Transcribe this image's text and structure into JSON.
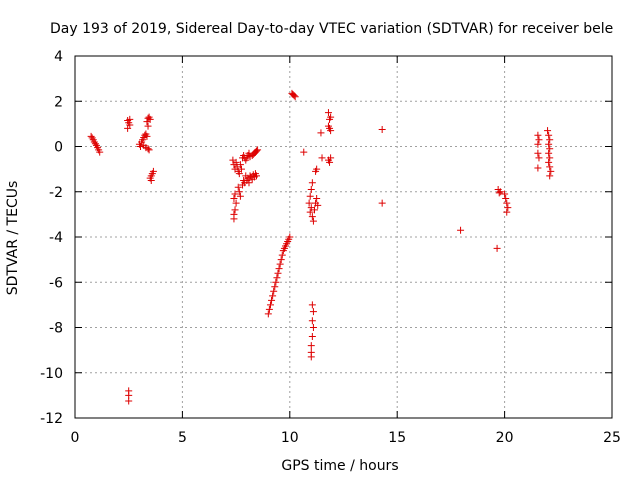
{
  "chart_data": {
    "type": "scatter",
    "title": "Day 193 of 2019, Sidereal Day-to-day VTEC variation (SDTVAR) for receiver bele",
    "xlabel": "GPS time / hours",
    "ylabel": "SDTVAR / TECUs",
    "xlim": [
      0,
      25
    ],
    "ylim": [
      -12,
      4
    ],
    "xticks": [
      0,
      5,
      10,
      15,
      20,
      25
    ],
    "yticks": [
      4,
      2,
      0,
      -2,
      -4,
      -6,
      -8,
      -10,
      -12
    ],
    "grid": true,
    "marker": "+",
    "series_color": "#dd0000",
    "series": [
      {
        "name": "SDTVAR",
        "points": [
          [
            0.75,
            0.45
          ],
          [
            0.8,
            0.38
          ],
          [
            0.85,
            0.3
          ],
          [
            0.9,
            0.2
          ],
          [
            0.95,
            0.12
          ],
          [
            1.0,
            0.05
          ],
          [
            1.05,
            -0.05
          ],
          [
            1.1,
            -0.15
          ],
          [
            1.15,
            -0.25
          ],
          [
            2.45,
            1.15
          ],
          [
            2.5,
            1.05
          ],
          [
            2.55,
            0.95
          ],
          [
            2.45,
            0.8
          ],
          [
            2.55,
            1.2
          ],
          [
            2.5,
            -10.8
          ],
          [
            2.5,
            -11.0
          ],
          [
            2.5,
            -11.25
          ],
          [
            3.0,
            0.1
          ],
          [
            3.05,
            0.0
          ],
          [
            3.1,
            0.2
          ],
          [
            3.15,
            0.3
          ],
          [
            3.2,
            0.4
          ],
          [
            3.25,
            0.5
          ],
          [
            3.3,
            0.55
          ],
          [
            3.3,
            -0.05
          ],
          [
            3.35,
            0.45
          ],
          [
            3.4,
            -0.1
          ],
          [
            3.45,
            -0.15
          ],
          [
            3.2,
            0.05
          ],
          [
            3.35,
            1.1
          ],
          [
            3.4,
            1.25
          ],
          [
            3.45,
            1.3
          ],
          [
            3.5,
            1.2
          ],
          [
            3.4,
            0.9
          ],
          [
            3.5,
            -1.4
          ],
          [
            3.55,
            -1.3
          ],
          [
            3.6,
            -1.2
          ],
          [
            3.65,
            -1.1
          ],
          [
            3.55,
            -1.5
          ],
          [
            7.35,
            -0.6
          ],
          [
            7.4,
            -0.8
          ],
          [
            7.45,
            -1.0
          ],
          [
            7.5,
            -0.7
          ],
          [
            7.55,
            -0.9
          ],
          [
            7.6,
            -1.1
          ],
          [
            7.65,
            -1.2
          ],
          [
            7.7,
            -0.8
          ],
          [
            7.75,
            -1.0
          ],
          [
            7.4,
            -2.3
          ],
          [
            7.45,
            -2.1
          ],
          [
            7.5,
            -2.5
          ],
          [
            7.45,
            -2.8
          ],
          [
            7.4,
            -3.0
          ],
          [
            7.4,
            -3.2
          ],
          [
            7.6,
            -1.8
          ],
          [
            7.65,
            -2.0
          ],
          [
            7.7,
            -2.2
          ],
          [
            7.8,
            -0.5
          ],
          [
            7.85,
            -0.4
          ],
          [
            7.9,
            -0.5
          ],
          [
            7.95,
            -0.6
          ],
          [
            8.0,
            -0.5
          ],
          [
            8.05,
            -0.4
          ],
          [
            8.1,
            -0.3
          ],
          [
            8.15,
            -0.45
          ],
          [
            7.8,
            -1.7
          ],
          [
            7.85,
            -1.5
          ],
          [
            7.9,
            -1.6
          ],
          [
            7.95,
            -1.3
          ],
          [
            8.0,
            -1.5
          ],
          [
            8.05,
            -1.4
          ],
          [
            8.1,
            -1.6
          ],
          [
            8.15,
            -1.3
          ],
          [
            8.2,
            -1.35
          ],
          [
            8.25,
            -0.4
          ],
          [
            8.3,
            -0.35
          ],
          [
            8.35,
            -0.3
          ],
          [
            8.4,
            -0.25
          ],
          [
            8.45,
            -0.2
          ],
          [
            8.5,
            -0.15
          ],
          [
            8.25,
            -1.45
          ],
          [
            8.3,
            -1.25
          ],
          [
            8.35,
            -1.35
          ],
          [
            8.4,
            -1.2
          ],
          [
            8.45,
            -1.3
          ],
          [
            9.0,
            -7.4
          ],
          [
            9.05,
            -7.2
          ],
          [
            9.1,
            -7.0
          ],
          [
            9.15,
            -6.8
          ],
          [
            9.2,
            -6.6
          ],
          [
            9.25,
            -6.4
          ],
          [
            9.3,
            -6.2
          ],
          [
            9.35,
            -6.0
          ],
          [
            9.4,
            -5.8
          ],
          [
            9.45,
            -5.6
          ],
          [
            9.5,
            -5.4
          ],
          [
            9.55,
            -5.2
          ],
          [
            9.6,
            -5.0
          ],
          [
            9.65,
            -4.8
          ],
          [
            9.7,
            -4.6
          ],
          [
            9.75,
            -4.5
          ],
          [
            9.8,
            -4.4
          ],
          [
            9.85,
            -4.3
          ],
          [
            9.9,
            -4.2
          ],
          [
            9.95,
            -4.1
          ],
          [
            10.0,
            -4.0
          ],
          [
            10.1,
            2.35
          ],
          [
            10.15,
            2.3
          ],
          [
            10.2,
            2.25
          ],
          [
            10.25,
            2.2
          ],
          [
            10.65,
            -0.25
          ],
          [
            10.9,
            -2.5
          ],
          [
            10.95,
            -2.2
          ],
          [
            11.0,
            -1.9
          ],
          [
            11.05,
            -1.6
          ],
          [
            10.95,
            -2.9
          ],
          [
            11.0,
            -2.7
          ],
          [
            11.05,
            -3.1
          ],
          [
            11.1,
            -3.3
          ],
          [
            11.15,
            -2.8
          ],
          [
            11.2,
            -2.5
          ],
          [
            11.25,
            -2.3
          ],
          [
            11.3,
            -2.6
          ],
          [
            11.2,
            -1.1
          ],
          [
            11.25,
            -1.0
          ],
          [
            11.05,
            -7.0
          ],
          [
            11.1,
            -7.3
          ],
          [
            11.05,
            -7.7
          ],
          [
            11.1,
            -8.0
          ],
          [
            11.05,
            -8.4
          ],
          [
            11.0,
            -8.8
          ],
          [
            11.0,
            -9.1
          ],
          [
            11.0,
            -9.3
          ],
          [
            11.45,
            0.6
          ],
          [
            11.5,
            -0.5
          ],
          [
            11.8,
            1.5
          ],
          [
            11.85,
            1.2
          ],
          [
            11.9,
            1.3
          ],
          [
            11.8,
            0.9
          ],
          [
            11.85,
            0.8
          ],
          [
            11.9,
            0.7
          ],
          [
            11.8,
            -0.6
          ],
          [
            11.85,
            -0.7
          ],
          [
            11.9,
            -0.5
          ],
          [
            14.3,
            0.75
          ],
          [
            14.3,
            -2.5
          ],
          [
            17.95,
            -3.7
          ],
          [
            19.65,
            -4.5
          ],
          [
            19.7,
            -1.9
          ],
          [
            19.75,
            -2.05
          ],
          [
            19.8,
            -2.0
          ],
          [
            20.0,
            -2.1
          ],
          [
            20.05,
            -2.3
          ],
          [
            20.1,
            -2.5
          ],
          [
            20.15,
            -2.7
          ],
          [
            20.1,
            -2.9
          ],
          [
            21.55,
            0.5
          ],
          [
            21.6,
            0.3
          ],
          [
            21.55,
            0.1
          ],
          [
            21.55,
            -0.3
          ],
          [
            21.6,
            -0.5
          ],
          [
            21.55,
            -0.95
          ],
          [
            22.0,
            0.7
          ],
          [
            22.05,
            0.5
          ],
          [
            22.1,
            0.3
          ],
          [
            22.05,
            0.1
          ],
          [
            22.1,
            -0.1
          ],
          [
            22.05,
            -0.3
          ],
          [
            22.1,
            -0.5
          ],
          [
            22.05,
            -0.7
          ],
          [
            22.1,
            -0.9
          ],
          [
            22.15,
            -1.1
          ],
          [
            22.1,
            -1.3
          ]
        ]
      }
    ]
  }
}
